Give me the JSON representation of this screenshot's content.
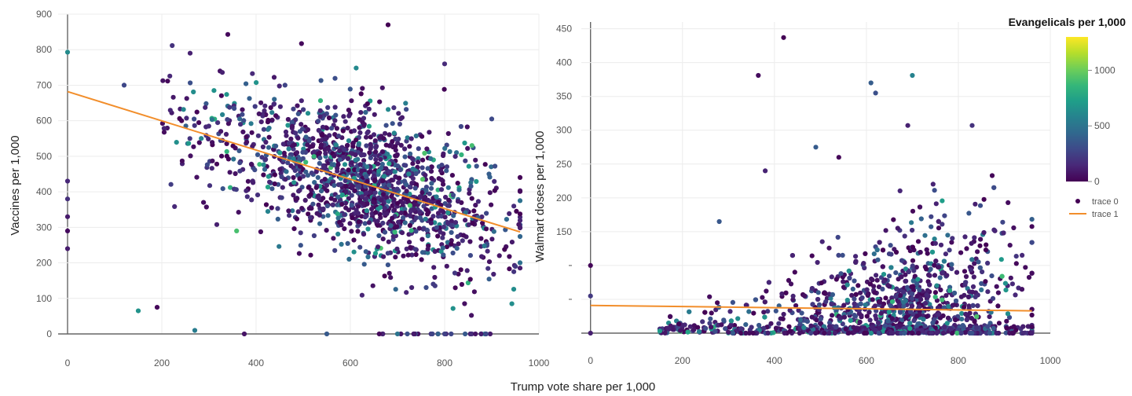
{
  "shared": {
    "xlabel": "Trump vote share per 1,000",
    "x_ticks": [
      "0",
      "200",
      "400",
      "600",
      "800",
      "1000"
    ]
  },
  "colorbar": {
    "title": "Evangelicals per 1,000",
    "range": [
      0,
      1300
    ],
    "ticks": [
      {
        "value": 0,
        "label": "0"
      },
      {
        "value": 500,
        "label": "500"
      },
      {
        "value": 1000,
        "label": "1000"
      }
    ],
    "colorscale": [
      "#440154",
      "#482878",
      "#3e4989",
      "#31688e",
      "#26828e",
      "#1f9e89",
      "#35b779",
      "#6ece58",
      "#b5de2b",
      "#fde725"
    ]
  },
  "legend": {
    "entries": [
      {
        "name": "trace 0",
        "symbol": "dot",
        "color": "#440154"
      },
      {
        "name": "trace 1",
        "symbol": "line",
        "color": "#f28e2b"
      }
    ]
  },
  "chart_data": [
    {
      "type": "scatter",
      "xlabel": "Trump vote share per 1,000",
      "ylabel": "Vaccines per 1,000",
      "xlim": [
        -20,
        1000
      ],
      "ylim": [
        0,
        900
      ],
      "y_ticks": [
        "0",
        "100",
        "200",
        "300",
        "400",
        "500",
        "600",
        "700",
        "800",
        "900"
      ],
      "color_by": "Evangelicals per 1,000",
      "series": [
        {
          "name": "trace 0",
          "mode": "markers",
          "points_summary": "about 2,500 counties; vaccines fall from ~550-650 at low vote share to ~300-400 near 900",
          "sample_points": [
            [
              0,
              793
            ],
            [
              0,
              430
            ],
            [
              0,
              380
            ],
            [
              0,
              330
            ],
            [
              0,
              290
            ],
            [
              0,
              240
            ],
            [
              340,
              843
            ],
            [
              680,
              870
            ],
            [
              800,
              760
            ],
            [
              260,
              790
            ],
            [
              120,
              700
            ],
            [
              900,
              605
            ],
            [
              950,
              190
            ],
            [
              270,
              10
            ],
            [
              190,
              75
            ],
            [
              150,
              65
            ],
            [
              375,
              0
            ],
            [
              550,
              0
            ],
            [
              700,
              0
            ],
            [
              800,
              0
            ]
          ]
        },
        {
          "name": "trace 1",
          "mode": "lines",
          "x": [
            0,
            960
          ],
          "y": [
            682,
            287
          ]
        }
      ]
    },
    {
      "type": "scatter",
      "xlabel": "Trump vote share per 1,000",
      "ylabel": "Walmart doses per 1,000",
      "xlim": [
        -20,
        1000
      ],
      "ylim": [
        0,
        460
      ],
      "y_ticks": [
        "150",
        "200",
        "250",
        "300",
        "350",
        "400",
        "450"
      ],
      "color_by": "Evangelicals per 1,000",
      "series": [
        {
          "name": "trace 0",
          "mode": "markers",
          "points_summary": "about 2,500 counties; most between 0 and 150 doses, many at 0, a few outliers up to ~440",
          "sample_points": [
            [
              0,
              100
            ],
            [
              0,
              55
            ],
            [
              0,
              0
            ],
            [
              420,
              437
            ],
            [
              365,
              381
            ],
            [
              700,
              381
            ],
            [
              610,
              370
            ],
            [
              620,
              355
            ],
            [
              830,
              307
            ],
            [
              690,
              307
            ],
            [
              380,
              240
            ],
            [
              490,
              275
            ],
            [
              540,
              260
            ],
            [
              280,
              165
            ],
            [
              310,
              0
            ],
            [
              960,
              0
            ]
          ]
        },
        {
          "name": "trace 1",
          "mode": "lines",
          "x": [
            0,
            960
          ],
          "y": [
            41,
            33
          ]
        }
      ]
    }
  ]
}
